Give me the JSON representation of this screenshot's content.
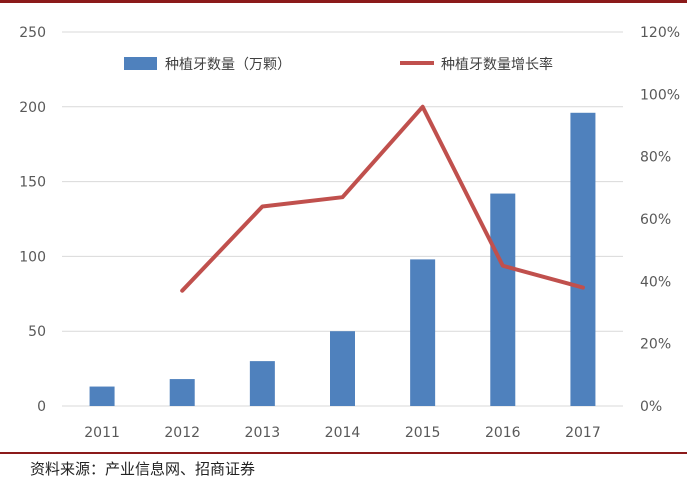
{
  "source": "资料来源：产业信息网、招商证券",
  "chart_data": {
    "type": "bar",
    "categories": [
      "2011",
      "2012",
      "2013",
      "2014",
      "2015",
      "2016",
      "2017"
    ],
    "series": [
      {
        "name": "种植牙数量（万颗）",
        "type": "bar",
        "axis": "left",
        "values": [
          13,
          18,
          30,
          50,
          98,
          142,
          196
        ]
      },
      {
        "name": "种植牙数量增长率",
        "type": "line",
        "axis": "right",
        "values": [
          null,
          0.37,
          0.64,
          0.67,
          0.96,
          0.45,
          0.38
        ]
      }
    ],
    "y_left": {
      "ylim": [
        0,
        250
      ],
      "ticks": [
        "0",
        "50",
        "100",
        "150",
        "200",
        "250"
      ]
    },
    "y_right": {
      "ylim": [
        0,
        1.2
      ],
      "ticks": [
        "0%",
        "20%",
        "40%",
        "60%",
        "80%",
        "100%",
        "120%"
      ]
    },
    "grid": true,
    "legend": "top",
    "colors": {
      "bar": "#4f81bd",
      "line": "#c0504d",
      "grid": "#d9d9d9"
    }
  }
}
